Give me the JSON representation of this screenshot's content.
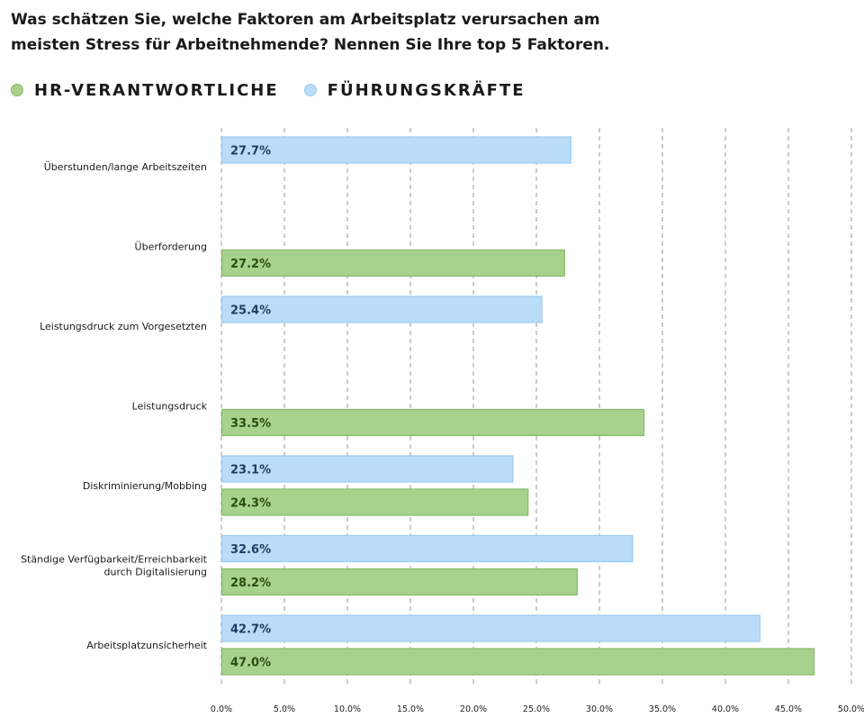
{
  "chart_data": {
    "type": "bar",
    "orientation": "horizontal",
    "title": "Was schätzen Sie, welche Faktoren am Arbeitsplatz verursachen am meisten Stress für Arbeitnehmende? Nennen Sie Ihre top 5 Faktoren.",
    "categories": [
      "Überstunden/lange Arbeitszeiten",
      "Überforderung",
      "Leistungsdruck zum Vorgesetzten",
      "Leistungsdruck",
      "Diskriminierung/Mobbing",
      "Ständige Verfügbarkeit/Erreichbarkeit durch Digitalisierung",
      "Arbeitsplatzunsicherheit"
    ],
    "category_lines": [
      [
        "Überstunden/lange Arbeitszeiten"
      ],
      [
        "Überforderung"
      ],
      [
        "Leistungsdruck zum Vorgesetzten"
      ],
      [
        "Leistungsdruck"
      ],
      [
        "Diskriminierung/Mobbing"
      ],
      [
        "Ständige Verfügbarkeit/Erreichbarkeit",
        "durch Digitalisierung"
      ],
      [
        "Arbeitsplatzunsicherheit"
      ]
    ],
    "series": [
      {
        "name": "FÜHRUNGSKRÄFTE",
        "fill": "#b9dcf8",
        "stroke": "#9ccbf0",
        "label_color": "#1d3f66",
        "values": [
          27.7,
          null,
          25.4,
          null,
          23.1,
          32.6,
          42.7
        ],
        "labels": [
          "27.7%",
          null,
          "25.4%",
          null,
          "23.1%",
          "32.6%",
          "42.7%"
        ]
      },
      {
        "name": "HR-VERANTWORTLICHE",
        "fill": "#a9d18e",
        "stroke": "#86bb66",
        "label_color": "#2c4a14",
        "values": [
          null,
          27.2,
          null,
          33.5,
          24.3,
          28.2,
          47.0
        ],
        "labels": [
          null,
          "27.2%",
          null,
          "33.5%",
          "24.3%",
          "28.2%",
          "47.0%"
        ]
      }
    ],
    "legend_order": [
      "HR-VERANTWORTLICHE",
      "FÜHRUNGSKRÄFTE"
    ],
    "xlim": [
      0,
      50
    ],
    "xticks": [
      0,
      5,
      10,
      15,
      20,
      25,
      30,
      35,
      40,
      45,
      50
    ],
    "xtick_labels": [
      "0.0%",
      "5.0%",
      "10.0%",
      "15.0%",
      "20.0%",
      "25.0%",
      "30.0%",
      "35.0%",
      "40.0%",
      "45.0%",
      "50.0%"
    ],
    "grid": true,
    "legend_position": "top-left"
  }
}
